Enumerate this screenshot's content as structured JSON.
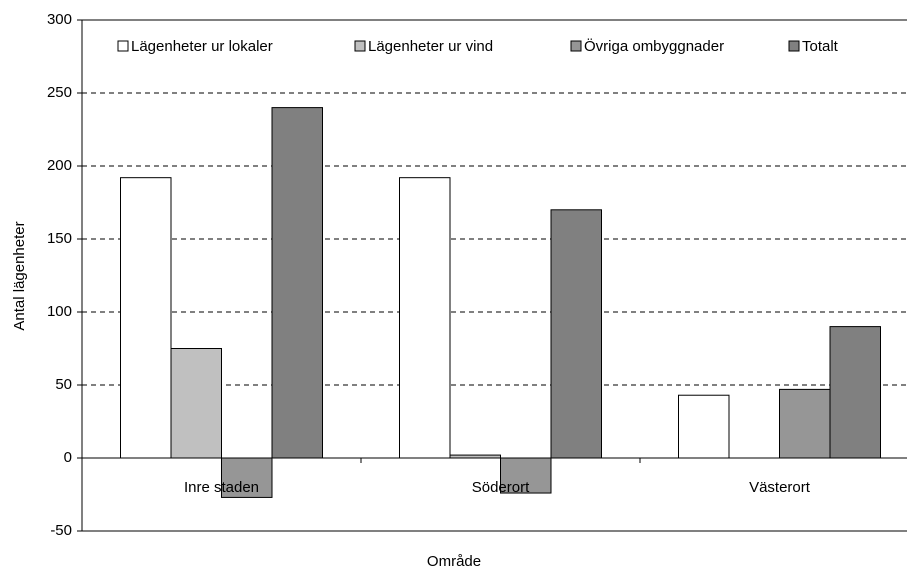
{
  "chart_data": {
    "type": "bar",
    "xlabel": "Område",
    "ylabel": "Antal lägenheter",
    "categories": [
      "Inre staden",
      "Söderort",
      "Västerort"
    ],
    "series": [
      {
        "name": "Lägenheter ur lokaler",
        "color": "#ffffff",
        "values": [
          192,
          192,
          43
        ]
      },
      {
        "name": "Lägenheter ur vind",
        "color": "#c0c0c0",
        "values": [
          75,
          2,
          0
        ]
      },
      {
        "name": "Övriga ombyggnader",
        "color": "#969696",
        "values": [
          -27,
          -24,
          47
        ]
      },
      {
        "name": "Totalt",
        "color": "#808080",
        "values": [
          240,
          170,
          90
        ]
      }
    ],
    "ylim": [
      -50,
      300
    ],
    "yticks": [
      -50,
      0,
      50,
      100,
      150,
      200,
      250,
      300
    ],
    "grid": true,
    "legend": "top"
  }
}
